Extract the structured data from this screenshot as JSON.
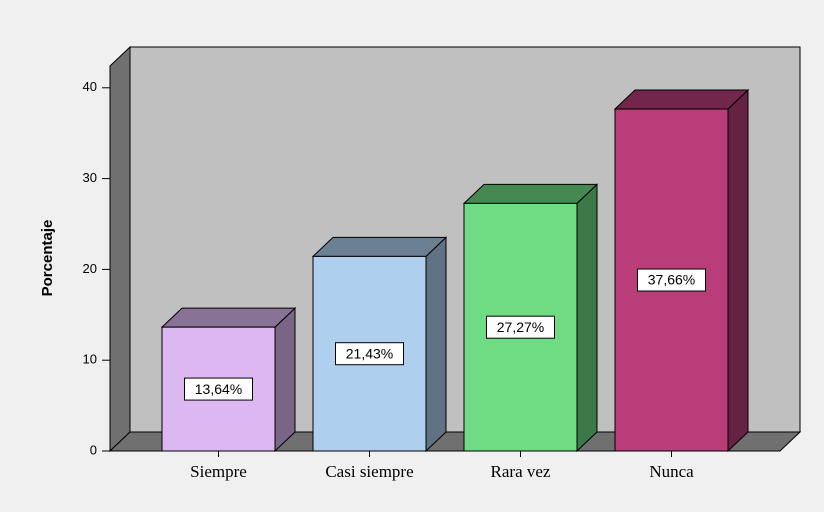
{
  "chart_data": {
    "type": "bar3d",
    "y_label": "Porcentaje",
    "categories": [
      "Siempre",
      "Casi siempre",
      "Rara vez",
      "Nunca"
    ],
    "values": [
      13.64,
      21.43,
      27.27,
      37.66
    ],
    "value_labels": [
      "13,64%",
      "21,43%",
      "27,27%",
      "37,66%"
    ],
    "colors": [
      "#dcb8f2",
      "#aecfee",
      "#6fdb83",
      "#b93d79"
    ],
    "ylim": [
      0,
      42.4
    ],
    "yticks": [
      0,
      10,
      20,
      30,
      40
    ],
    "grid": false
  }
}
